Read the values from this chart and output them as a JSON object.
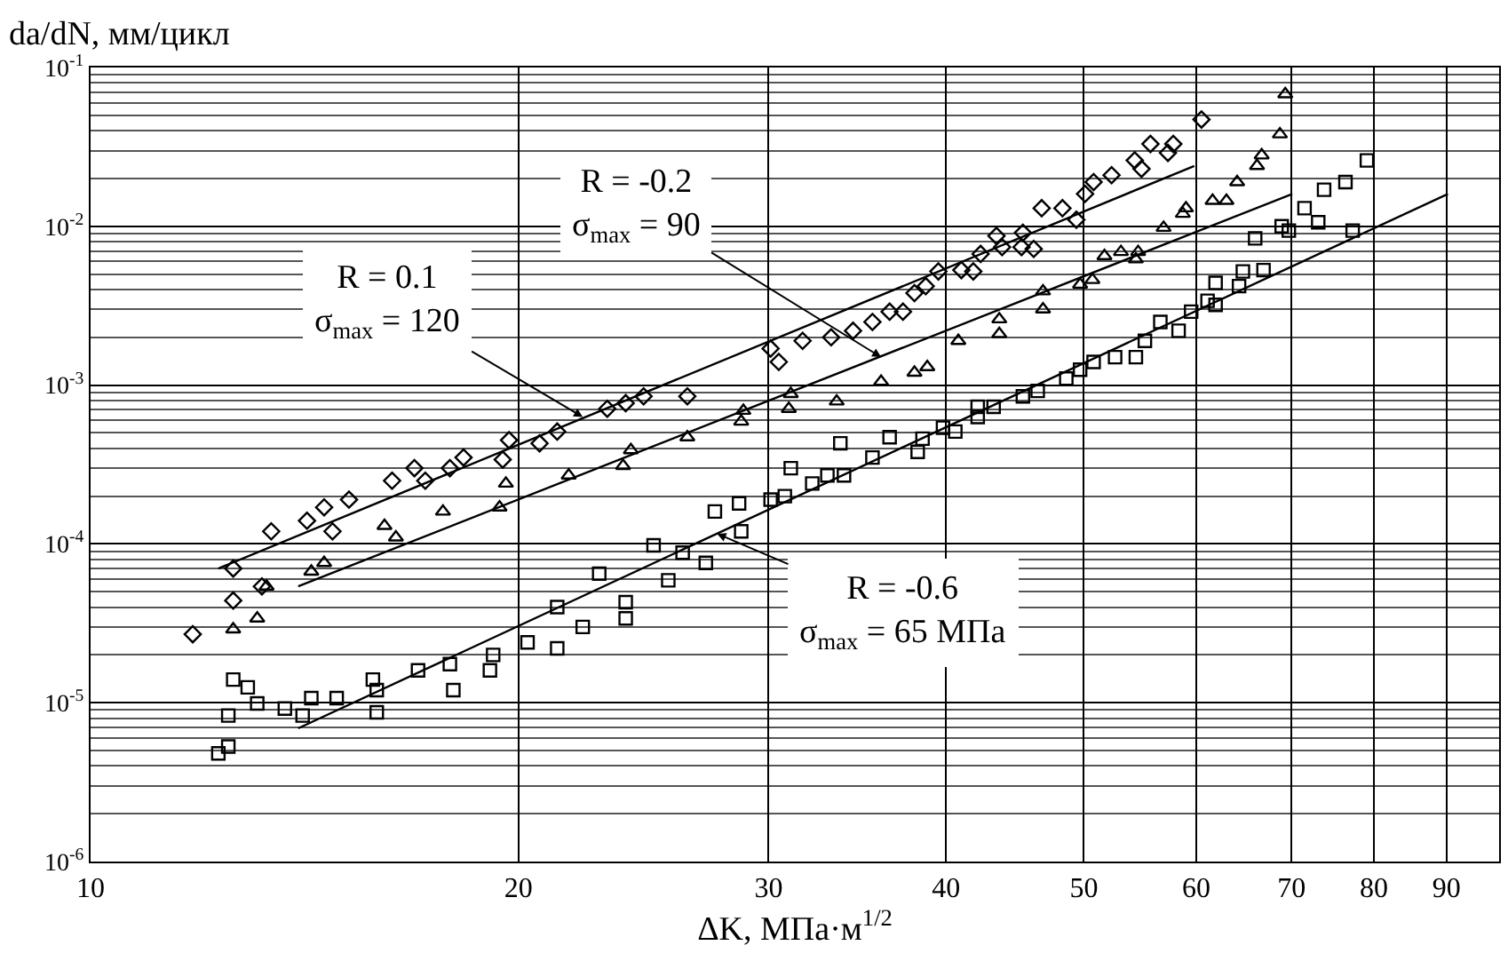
{
  "chart_data": {
    "type": "scatter",
    "xlabel": "ΔK, МПа·м$^{1/2}$",
    "ylabel": "da/dN, мм/цикл",
    "log": "xy",
    "grid": true,
    "xlim": [
      10,
      98
    ],
    "xticks": [
      10,
      20,
      30,
      40,
      50,
      60,
      70,
      80,
      90
    ],
    "ylim": [
      1e-06,
      0.1
    ],
    "yticks": [
      {
        "value": 1e-06,
        "label": "10$^{-6}$"
      },
      {
        "value": 1e-05,
        "label": "10$^{-5}$"
      },
      {
        "value": 0.0001,
        "label": "10$^{-4}$"
      },
      {
        "value": 0.001,
        "label": "10$^{-3}$"
      },
      {
        "value": 0.01,
        "label": "10$^{-2}$"
      },
      {
        "value": 0.1,
        "label": "10$^{-1}$"
      }
    ],
    "series": [
      {
        "marker": "diamond",
        "color": "#000000",
        "x": [
          11.8,
          12.6,
          12.6,
          13.2,
          13.4,
          14.2,
          14.6,
          14.8,
          15.2,
          16.3,
          16.9,
          17.2,
          17.9,
          18.3,
          19.5,
          19.7,
          20.7,
          21.3,
          23.1,
          23.8,
          24.5,
          26.3,
          30.1,
          30.5,
          31.7,
          33.2,
          34.4,
          35.5,
          36.5,
          37.3,
          38.0,
          38.7,
          39.5,
          41.0,
          41.8,
          42.3,
          43.4,
          43.8,
          45.3,
          45.2,
          46.1,
          46.7,
          48.3,
          49.4,
          50.1,
          50.8,
          52.3,
          54.3,
          54.9,
          55.7,
          57.3,
          57.8,
          60.5
        ],
        "values": [
          2.7e-05,
          4.4e-05,
          7e-05,
          5.4e-05,
          0.00012,
          0.00014,
          0.00017,
          0.00012,
          0.00019,
          0.00025,
          0.0003,
          0.00025,
          0.0003,
          0.00035,
          0.00034,
          0.00045,
          0.00043,
          0.00051,
          0.00071,
          0.00077,
          0.00085,
          0.00085,
          0.0017,
          0.0014,
          0.0019,
          0.002,
          0.0022,
          0.0025,
          0.0029,
          0.0029,
          0.0038,
          0.0042,
          0.0052,
          0.0053,
          0.0052,
          0.0067,
          0.0087,
          0.0074,
          0.0091,
          0.0074,
          0.0072,
          0.013,
          0.013,
          0.011,
          0.016,
          0.019,
          0.021,
          0.026,
          0.023,
          0.033,
          0.029,
          0.033,
          0.047
        ]
      },
      {
        "type": "line",
        "color": "#000000",
        "x": [
          12.3,
          59.8
        ],
        "values": [
          7e-05,
          0.024
        ]
      },
      {
        "marker": "triangle",
        "color": "#000000",
        "x": [
          12.6,
          13.1,
          13.3,
          14.3,
          14.6,
          16.1,
          16.4,
          17.7,
          19.6,
          19.4,
          21.7,
          23.7,
          24.0,
          26.3,
          28.8,
          28.7,
          31.1,
          31.0,
          33.5,
          36.0,
          38.0,
          38.8,
          40.8,
          43.6,
          43.6,
          46.8,
          46.8,
          49.7,
          50.7,
          51.7,
          53.1,
          54.4,
          54.6,
          56.9,
          58.7,
          59.0,
          61.6,
          63.0,
          64.1,
          66.2,
          66.7,
          68.7,
          69.3
        ],
        "values": [
          2.9e-05,
          3.4e-05,
          5.4e-05,
          6.7e-05,
          7.6e-05,
          0.00013,
          0.00011,
          0.00016,
          0.00024,
          0.00017,
          0.00027,
          0.00031,
          0.00039,
          0.00047,
          0.00069,
          0.00059,
          0.00088,
          0.00071,
          0.00079,
          0.00105,
          0.0012,
          0.0013,
          0.0019,
          0.0026,
          0.0021,
          0.0039,
          0.003,
          0.0043,
          0.0046,
          0.0065,
          0.0069,
          0.0062,
          0.0069,
          0.0098,
          0.012,
          0.013,
          0.0145,
          0.0145,
          0.019,
          0.024,
          0.028,
          0.038,
          0.068
        ]
      },
      {
        "type": "line",
        "color": "#000000",
        "x": [
          14.0,
          70.1
        ],
        "values": [
          5.4e-05,
          0.016
        ]
      },
      {
        "marker": "square",
        "color": "#000000",
        "x": [
          12.3,
          12.5,
          12.5,
          12.6,
          12.9,
          13.1,
          13.7,
          14.1,
          14.3,
          14.9,
          15.8,
          15.9,
          15.9,
          17.0,
          17.9,
          18.0,
          19.1,
          19.2,
          20.3,
          21.3,
          21.3,
          22.2,
          23.8,
          23.8,
          22.8,
          24.9,
          25.5,
          26.1,
          27.1,
          27.5,
          28.6,
          28.7,
          30.1,
          30.8,
          31.1,
          32.2,
          33.0,
          33.9,
          33.7,
          35.5,
          36.5,
          38.2,
          38.5,
          39.8,
          40.6,
          42.1,
          42.1,
          43.2,
          45.3,
          46.4,
          48.6,
          49.7,
          50.8,
          52.6,
          54.4,
          55.2,
          56.6,
          58.3,
          59.5,
          61.1,
          61.9,
          61.9,
          64.3,
          64.7,
          66.9,
          66.0,
          68.9,
          69.7,
          71.5,
          73.1,
          73.8,
          76.4,
          77.3,
          79.1
        ],
        "values": [
          4.8e-06,
          5.3e-06,
          8.3e-06,
          1.4e-05,
          1.25e-05,
          9.9e-06,
          9.2e-06,
          8.3e-06,
          1.07e-05,
          1.07e-05,
          1.4e-05,
          1.2e-05,
          8.7e-06,
          1.6e-05,
          1.75e-05,
          1.2e-05,
          1.6e-05,
          2e-05,
          2.4e-05,
          2.2e-05,
          4e-05,
          3e-05,
          4.3e-05,
          3.4e-05,
          6.5e-05,
          9.8e-05,
          5.9e-05,
          8.8e-05,
          7.6e-05,
          0.00016,
          0.00018,
          0.00012,
          0.00019,
          0.0002,
          0.0003,
          0.00024,
          0.00027,
          0.00027,
          0.00043,
          0.00035,
          0.00047,
          0.00038,
          0.00046,
          0.00054,
          0.00051,
          0.00063,
          0.00073,
          0.00073,
          0.00085,
          0.00092,
          0.0011,
          0.00125,
          0.0014,
          0.0015,
          0.0015,
          0.0019,
          0.0025,
          0.0022,
          0.0029,
          0.0034,
          0.0032,
          0.0044,
          0.0042,
          0.0052,
          0.0053,
          0.0084,
          0.01,
          0.0094,
          0.013,
          0.0106,
          0.017,
          0.019,
          0.0094,
          0.026
        ]
      },
      {
        "type": "line",
        "color": "#000000",
        "x": [
          14.0,
          90.2
        ],
        "values": [
          6.9e-06,
          0.016
        ]
      }
    ],
    "annotations": [
      {
        "text": "R = 0.1\nσ$_{max}$ = 120",
        "x": 22.2,
        "y": 0.00063
      },
      {
        "text": "R = -0.2\nσ$_{max}$ = 90",
        "x": 36.0,
        "y": 0.0015
      },
      {
        "text": "R = -0.6\nσ$_{max}$ = 65 МПа",
        "x": 27.6,
        "y": 0.000116
      }
    ]
  }
}
